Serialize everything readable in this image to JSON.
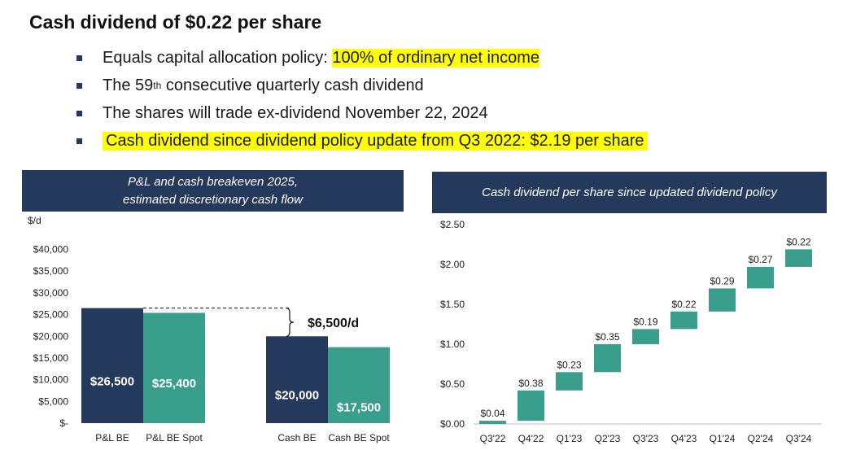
{
  "title": "Cash dividend of $0.22 per share",
  "bullets": {
    "b1_text": "Equals capital allocation policy: ",
    "b1_highlight": "100% of ordinary net income",
    "b2_pre": "The 59",
    "b2_sup": "th",
    "b2_post": " consecutive quarterly cash dividend",
    "b3_text": "The shares will trade ex-dividend November 22, 2024",
    "b4_highlight": "Cash dividend since dividend policy update from Q3 2022: $2.19 per share"
  },
  "left_panel": {
    "header_line1": "P&L and cash breakeven 2025,",
    "header_line2": "estimated discretionary cash flow"
  },
  "right_panel": {
    "header": "Cash dividend per share since updated dividend policy"
  },
  "colors": {
    "navy": "#24395c",
    "teal": "#3a9e8c",
    "highlight": "#ffff00"
  },
  "chart_data": [
    {
      "type": "bar",
      "unit_label": "$/d",
      "categories": [
        "P&L BE",
        "P&L BE Spot",
        "Cash BE",
        "Cash BE Spot"
      ],
      "values": [
        26500,
        25400,
        20000,
        17500
      ],
      "value_labels": [
        "$26,500",
        "$25,400",
        "$20,000",
        "$17,500"
      ],
      "bar_colors": [
        "#24395c",
        "#3a9e8c",
        "#24395c",
        "#3a9e8c"
      ],
      "ylim": [
        0,
        40000
      ],
      "yticks": [
        0,
        5000,
        10000,
        15000,
        20000,
        25000,
        30000,
        35000,
        40000
      ],
      "ytick_labels": [
        "$-",
        "$5,000",
        "$10,000",
        "$15,000",
        "$20,000",
        "$25,000",
        "$30,000",
        "$35,000",
        "$40,000"
      ],
      "annotation": {
        "label": "$6,500/d",
        "from_value": 26500,
        "to_value": 20000
      }
    },
    {
      "type": "waterfall",
      "categories": [
        "Q3'22",
        "Q4'22",
        "Q1'23",
        "Q2'23",
        "Q3'23",
        "Q4'23",
        "Q1'24",
        "Q2'24",
        "Q3'24"
      ],
      "values": [
        0.04,
        0.38,
        0.23,
        0.35,
        0.19,
        0.22,
        0.29,
        0.27,
        0.22
      ],
      "value_labels": [
        "$0.04",
        "$0.38",
        "$0.23",
        "$0.35",
        "$0.19",
        "$0.22",
        "$0.29",
        "$0.27",
        "$0.22"
      ],
      "color": "#3a9e8c",
      "ylim": [
        0,
        2.5
      ],
      "yticks": [
        0,
        0.5,
        1.0,
        1.5,
        2.0,
        2.5
      ],
      "ytick_labels": [
        "$0.00",
        "$0.50",
        "$1.00",
        "$1.50",
        "$2.00",
        "$2.50"
      ]
    }
  ]
}
